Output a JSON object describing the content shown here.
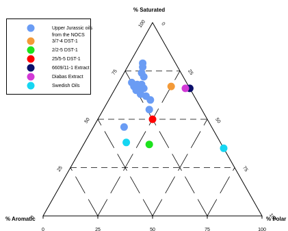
{
  "chart_data": {
    "type": "scatter",
    "ternary": true,
    "axis_labels": {
      "top": "% Saturated",
      "left": "% Aromatic",
      "right": "% Polar"
    },
    "tick_values": [
      0,
      25,
      50,
      75,
      100
    ],
    "grid": "dashed",
    "legend_position": "top-left",
    "series": [
      {
        "name": "Upper Jurassic oils from the NOCS",
        "color": "#6a9cf4",
        "points": [
          {
            "saturated": 79,
            "aromatic": 15,
            "polar": 6
          },
          {
            "saturated": 77,
            "aromatic": 16,
            "polar": 7
          },
          {
            "saturated": 74,
            "aromatic": 18,
            "polar": 8
          },
          {
            "saturated": 72,
            "aromatic": 18,
            "polar": 10
          },
          {
            "saturated": 69,
            "aromatic": 25,
            "polar": 6
          },
          {
            "saturated": 68,
            "aromatic": 23,
            "polar": 9
          },
          {
            "saturated": 68,
            "aromatic": 21,
            "polar": 11
          },
          {
            "saturated": 67,
            "aromatic": 25,
            "polar": 8
          },
          {
            "saturated": 66,
            "aromatic": 21,
            "polar": 13
          },
          {
            "saturated": 65,
            "aromatic": 25,
            "polar": 10
          },
          {
            "saturated": 65,
            "aromatic": 23,
            "polar": 12
          },
          {
            "saturated": 63,
            "aromatic": 24,
            "polar": 13
          },
          {
            "saturated": 62,
            "aromatic": 22,
            "polar": 16
          },
          {
            "saturated": 60,
            "aromatic": 21,
            "polar": 19
          },
          {
            "saturated": 55,
            "aromatic": 24,
            "polar": 21
          },
          {
            "saturated": 46,
            "aromatic": 40,
            "polar": 14
          }
        ]
      },
      {
        "name": "3/7-4 DST-1",
        "color": "#f39a38",
        "points": [
          {
            "saturated": 67,
            "aromatic": 8,
            "polar": 25
          }
        ]
      },
      {
        "name": "2/2-5 DST-1",
        "color": "#1de21d",
        "points": [
          {
            "saturated": 37,
            "aromatic": 33,
            "polar": 30
          }
        ]
      },
      {
        "name": "25/5-5 DST-1",
        "color": "#ff0000",
        "points": [
          {
            "saturated": 50,
            "aromatic": 25,
            "polar": 25
          }
        ]
      },
      {
        "name": "6609/11-1 Extract",
        "color": "#0b0f6b",
        "points": [
          {
            "saturated": 66,
            "aromatic": 0,
            "polar": 34
          }
        ]
      },
      {
        "name": "Diabas Extract",
        "color": "#d23ad6",
        "points": [
          {
            "saturated": 66,
            "aromatic": 2,
            "polar": 32
          }
        ]
      },
      {
        "name": "Swedish Oils",
        "color": "#16d6f2",
        "points": [
          {
            "saturated": 38,
            "aromatic": 43,
            "polar": 19
          },
          {
            "saturated": 35,
            "aromatic": 0,
            "polar": 65
          }
        ]
      }
    ],
    "legend": [
      {
        "label_lines": [
          "Upper Jurassic oils",
          "from the NOCS"
        ],
        "color": "#6a9cf4"
      },
      {
        "label_lines": [
          "3/7-4 DST-1"
        ],
        "color": "#f39a38"
      },
      {
        "label_lines": [
          "2/2-5 DST-1"
        ],
        "color": "#1de21d"
      },
      {
        "label_lines": [
          "25/5-5 DST-1"
        ],
        "color": "#ff0000"
      },
      {
        "label_lines": [
          "6609/11-1 Extract"
        ],
        "color": "#0b0f6b"
      },
      {
        "label_lines": [
          "Diabas Extract"
        ],
        "color": "#d23ad6"
      },
      {
        "label_lines": [
          "Swedish Oils"
        ],
        "color": "#16d6f2"
      }
    ]
  }
}
